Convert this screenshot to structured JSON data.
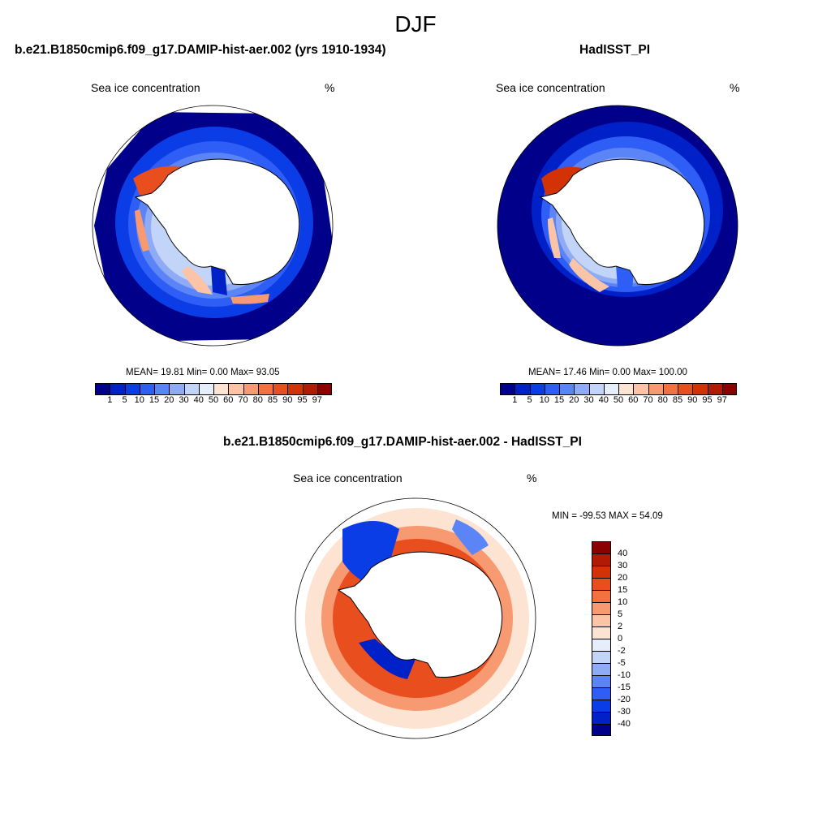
{
  "figure": {
    "title": "DJF"
  },
  "panels": [
    {
      "title": "b.e21.B1850cmip6.f09_g17.DAMIP-hist-aer.002 (yrs 1910-1934)",
      "variable": "Sea ice concentration",
      "units": "%",
      "stats": "MEAN=  19.81  Min=    0.00  Max=   93.05"
    },
    {
      "title": "HadISST_PI",
      "variable": "Sea ice concentration",
      "units": "%",
      "stats": "MEAN=  17.46  Min=    0.00  Max= 100.00"
    },
    {
      "title": "b.e21.B1850cmip6.f09_g17.DAMIP-hist-aer.002 - HadISST_PI",
      "variable": "Sea ice concentration",
      "units": "%",
      "stats": "MIN = -99.53 MAX =  54.09"
    }
  ],
  "colorbar_abs": {
    "levels": [
      "1",
      "5",
      "10",
      "15",
      "20",
      "30",
      "40",
      "50",
      "60",
      "70",
      "80",
      "85",
      "90",
      "95",
      "97"
    ],
    "colors": [
      "#00008b",
      "#0020c8",
      "#0a3de6",
      "#2e5ef5",
      "#5b84f7",
      "#8fabf5",
      "#c2d4f7",
      "#e6eefb",
      "#fde3d2",
      "#fbc4a6",
      "#f79a72",
      "#f2713f",
      "#e94f1e",
      "#d23206",
      "#b11a04",
      "#8b0000"
    ]
  },
  "colorbar_diff": {
    "levels": [
      "40",
      "30",
      "20",
      "15",
      "10",
      "5",
      "2",
      "0",
      "-2",
      "-5",
      "-10",
      "-15",
      "-20",
      "-30",
      "-40"
    ],
    "colors": [
      "#8b0000",
      "#b11a04",
      "#d23206",
      "#e94f1e",
      "#f2713f",
      "#f79a72",
      "#fbc4a6",
      "#fde3d2",
      "#e6eefb",
      "#c2d4f7",
      "#8fabf5",
      "#5b84f7",
      "#2e5ef5",
      "#0a3de6",
      "#0020c8",
      "#00008b"
    ]
  },
  "map": {
    "projection": "south-polar-stereographic",
    "region": "Antarctica",
    "field": "Sea ice concentration"
  }
}
